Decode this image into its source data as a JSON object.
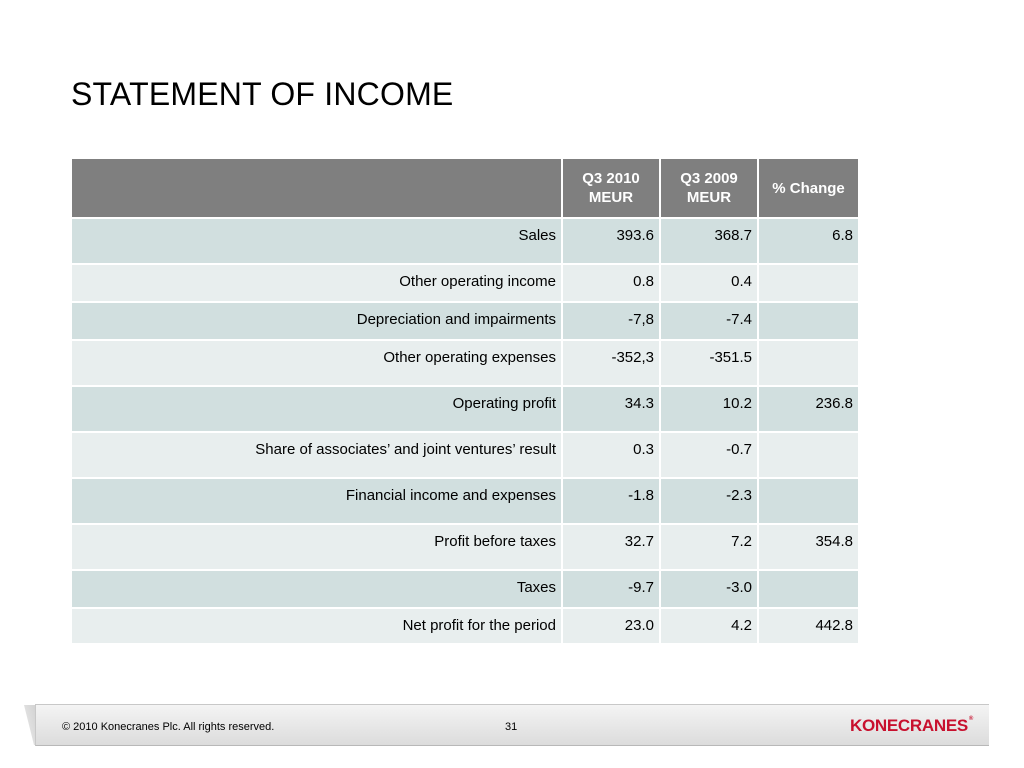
{
  "slide": {
    "title": "STATEMENT OF INCOME"
  },
  "table": {
    "headers": [
      "",
      "Q3 2010\nMEUR",
      "Q3 2009\nMEUR",
      "% Change"
    ],
    "header_lines": [
      [
        ""
      ],
      [
        "Q3 2010",
        "MEUR"
      ],
      [
        "Q3 2009",
        "MEUR"
      ],
      [
        "% Change"
      ]
    ],
    "rows": [
      {
        "label": "Sales",
        "q3_2010": "393.6",
        "q3_2009": "368.7",
        "change": "6.8"
      },
      {
        "label": "Other operating income",
        "q3_2010": "0.8",
        "q3_2009": "0.4",
        "change": ""
      },
      {
        "label": "Depreciation and impairments",
        "q3_2010": "-7,8",
        "q3_2009": "-7.4",
        "change": ""
      },
      {
        "label": "Other operating expenses",
        "q3_2010": "-352,3",
        "q3_2009": "-351.5",
        "change": ""
      },
      {
        "label": "Operating profit",
        "q3_2010": "34.3",
        "q3_2009": "10.2",
        "change": "236.8"
      },
      {
        "label": "Share of associates’ and joint ventures’ result",
        "q3_2010": "0.3",
        "q3_2009": "-0.7",
        "change": ""
      },
      {
        "label": "Financial income and expenses",
        "q3_2010": "-1.8",
        "q3_2009": "-2.3",
        "change": ""
      },
      {
        "label": "Profit before taxes",
        "q3_2010": "32.7",
        "q3_2009": "7.2",
        "change": "354.8"
      },
      {
        "label": "Taxes",
        "q3_2010": "-9.7",
        "q3_2009": "-3.0",
        "change": ""
      },
      {
        "label": "Net profit for the period",
        "q3_2010": "23.0",
        "q3_2009": "4.2",
        "change": "442.8"
      }
    ]
  },
  "footer": {
    "copyright": "© 2010 Konecranes Plc. All rights reserved.",
    "page_number": "31",
    "logo_text": "KONECRANES",
    "logo_mark": "®"
  },
  "colors": {
    "header_bg": "#7f7f7f",
    "row_dark": "#d1dfdf",
    "row_light": "#e8eeee",
    "logo_red": "#c8102e"
  }
}
